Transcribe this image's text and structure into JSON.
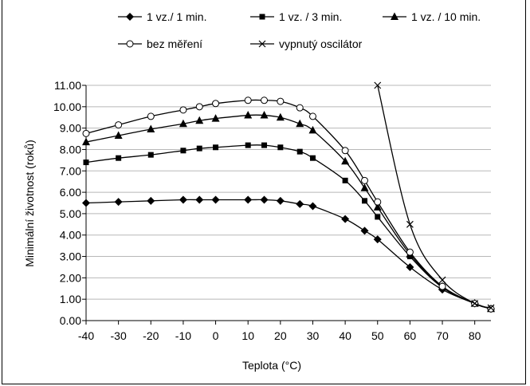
{
  "chart_data": {
    "type": "line",
    "xlabel": "Teplota (°C)",
    "ylabel": "Minimální životnost (roků)",
    "xlim": [
      -40,
      85
    ],
    "ylim": [
      0,
      11
    ],
    "x_ticks": [
      "-40",
      "-30",
      "-20",
      "-10",
      "0",
      "10",
      "20",
      "30",
      "40",
      "50",
      "60",
      "70",
      "80"
    ],
    "y_ticks": [
      "0.00",
      "1.00",
      "2.00",
      "3.00",
      "4.00",
      "5.00",
      "6.00",
      "7.00",
      "8.00",
      "9.00",
      "10.00",
      "11.00"
    ],
    "grid": "horizontal",
    "legend_position": "top",
    "series": [
      {
        "name": "1 vz./ 1 min.",
        "marker": "diamond",
        "color": "#000000",
        "x": [
          -40,
          -30,
          -20,
          -10,
          -5,
          0,
          10,
          15,
          20,
          26,
          30,
          40,
          46,
          50,
          60,
          70,
          80,
          85
        ],
        "y": [
          5.5,
          5.55,
          5.6,
          5.65,
          5.65,
          5.65,
          5.65,
          5.65,
          5.6,
          5.45,
          5.35,
          4.75,
          4.2,
          3.8,
          2.5,
          1.45,
          0.8,
          0.55
        ]
      },
      {
        "name": "1 vz. / 3 min.",
        "marker": "square",
        "color": "#000000",
        "x": [
          -40,
          -30,
          -20,
          -10,
          -5,
          0,
          10,
          15,
          20,
          26,
          30,
          40,
          46,
          50,
          60,
          70,
          80,
          85
        ],
        "y": [
          7.4,
          7.6,
          7.75,
          7.95,
          8.05,
          8.1,
          8.2,
          8.2,
          8.1,
          7.9,
          7.6,
          6.55,
          5.6,
          4.85,
          3.0,
          1.55,
          0.8,
          0.55
        ]
      },
      {
        "name": "1 vz. / 10 min.",
        "marker": "triangle",
        "color": "#000000",
        "x": [
          -40,
          -30,
          -20,
          -10,
          -5,
          0,
          10,
          15,
          20,
          26,
          30,
          40,
          46,
          50,
          60,
          70,
          80,
          85
        ],
        "y": [
          8.35,
          8.65,
          8.95,
          9.2,
          9.35,
          9.45,
          9.6,
          9.6,
          9.5,
          9.2,
          8.9,
          7.45,
          6.2,
          5.3,
          3.1,
          1.6,
          0.8,
          0.55
        ]
      },
      {
        "name": "bez měření",
        "marker": "circle",
        "color": "#000000",
        "x": [
          -40,
          -30,
          -20,
          -10,
          -5,
          0,
          10,
          15,
          20,
          26,
          30,
          40,
          46,
          50,
          60,
          70,
          80,
          85
        ],
        "y": [
          8.75,
          9.15,
          9.55,
          9.85,
          10.0,
          10.15,
          10.3,
          10.3,
          10.25,
          9.95,
          9.55,
          7.95,
          6.55,
          5.55,
          3.2,
          1.6,
          0.8,
          0.55
        ]
      },
      {
        "name": "vypnutý oscilátor",
        "marker": "x",
        "color": "#000000",
        "x": [
          50,
          60,
          70,
          80,
          85
        ],
        "y": [
          11.0,
          4.5,
          1.9,
          0.8,
          0.6
        ]
      }
    ]
  }
}
